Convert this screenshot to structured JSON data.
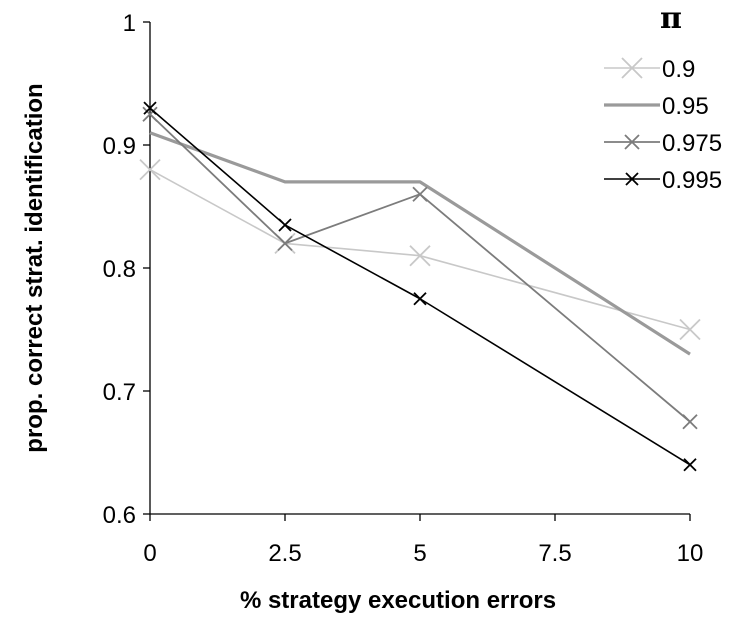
{
  "chart_data": {
    "type": "line",
    "title": "",
    "xlabel": "% strategy execution errors",
    "ylabel": "prop. correct strat. identification",
    "x": [
      0,
      2.5,
      5,
      7.5,
      10
    ],
    "x_tick_labels": [
      "0",
      "2.5",
      "5",
      "7.5",
      "10"
    ],
    "y_tick_labels": [
      "0.6",
      "0.7",
      "0.8",
      "0.9",
      "1"
    ],
    "xlim": [
      0,
      10
    ],
    "ylim": [
      0.6,
      1.0
    ],
    "grid": false,
    "legend": {
      "title": "π",
      "position": "top-right"
    },
    "series": [
      {
        "name": "0.9",
        "color": "#c8c8c8",
        "marker": "x-large",
        "x": [
          0,
          2.5,
          5,
          10
        ],
        "values": [
          0.88,
          0.82,
          0.81,
          0.75
        ]
      },
      {
        "name": "0.95",
        "color": "#9a9a9a",
        "marker": "none",
        "x": [
          0,
          2.5,
          5,
          10
        ],
        "values": [
          0.91,
          0.87,
          0.87,
          0.73
        ]
      },
      {
        "name": "0.975",
        "color": "#7c7c7c",
        "marker": "x",
        "x": [
          0,
          2.5,
          5,
          10
        ],
        "values": [
          0.925,
          0.82,
          0.86,
          0.675
        ]
      },
      {
        "name": "0.995",
        "color": "#000000",
        "marker": "x-small",
        "x": [
          0,
          2.5,
          5,
          10
        ],
        "values": [
          0.93,
          0.835,
          0.775,
          0.64
        ]
      }
    ]
  }
}
